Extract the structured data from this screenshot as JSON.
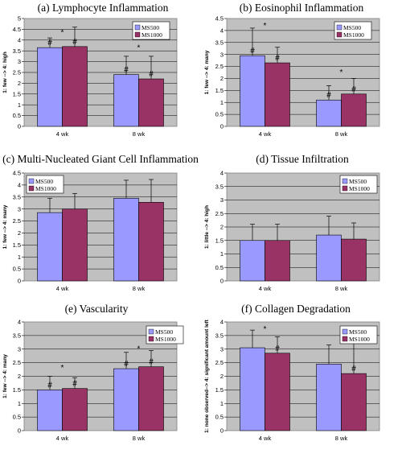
{
  "chart_data": [
    {
      "type": "bar",
      "title": "(a) Lymphocyte Inflammation",
      "ylabel": "1: few --> 4: high",
      "categories": [
        "4 wk",
        "8 wk"
      ],
      "ylim": [
        0,
        5
      ],
      "yticks": [
        "0",
        "0.5",
        "1",
        "1.5",
        "2",
        "2.5",
        "3",
        "3.5",
        "4",
        "4.5",
        "5"
      ],
      "series": [
        {
          "name": "MS500",
          "values": [
            3.65,
            2.4
          ],
          "errors": [
            0.45,
            0.85
          ],
          "color": "#9999ff"
        },
        {
          "name": "MS1000",
          "values": [
            3.7,
            2.2
          ],
          "errors": [
            0.9,
            1.05
          ],
          "color": "#993366"
        }
      ],
      "annotations": [
        {
          "text": "#",
          "category": 0,
          "series": 0
        },
        {
          "text": "#",
          "category": 0,
          "series": 1
        },
        {
          "text": "*",
          "category": 0,
          "series": 0.5,
          "y": 4.45
        },
        {
          "text": "#",
          "category": 1,
          "series": 0
        },
        {
          "text": "#",
          "category": 1,
          "series": 1
        },
        {
          "text": "*",
          "category": 1,
          "series": 0.5,
          "y": 3.75
        }
      ],
      "legend": "top-right",
      "grid": true
    },
    {
      "type": "bar",
      "title": "(b) Eosinophil Inflammation",
      "ylabel": "1: few --> 4: many",
      "categories": [
        "4 wk",
        "8 wk"
      ],
      "ylim": [
        0,
        4.5
      ],
      "yticks": [
        "0",
        "0.5",
        "1",
        "1.5",
        "2",
        "2.5",
        "3",
        "3.5",
        "4",
        "4.5"
      ],
      "series": [
        {
          "name": "MS500",
          "values": [
            2.95,
            1.1
          ],
          "errors": [
            1.15,
            0.6
          ],
          "color": "#9999ff"
        },
        {
          "name": "MS1000",
          "values": [
            2.65,
            1.35
          ],
          "errors": [
            0.65,
            0.65
          ],
          "color": "#993366"
        }
      ],
      "annotations": [
        {
          "text": "#",
          "category": 0,
          "series": 0
        },
        {
          "text": "#",
          "category": 0,
          "series": 1
        },
        {
          "text": "*",
          "category": 0,
          "series": 0.5,
          "y": 4.3
        },
        {
          "text": "#",
          "category": 1,
          "series": 0
        },
        {
          "text": "#",
          "category": 1,
          "series": 1
        },
        {
          "text": "*",
          "category": 1,
          "series": 0.5,
          "y": 2.35
        }
      ],
      "legend": "top-right",
      "grid": true
    },
    {
      "type": "bar",
      "title": "(c) Multi-Nucleated Giant Cell Inflammation",
      "ylabel": "1: few --> 4: many",
      "categories": [
        "4 wk",
        "8 wk"
      ],
      "ylim": [
        0,
        4.5
      ],
      "yticks": [
        "0",
        "0.5",
        "1",
        "1.5",
        "2",
        "2.5",
        "3",
        "3.5",
        "4",
        "4.5"
      ],
      "series": [
        {
          "name": "MS500",
          "values": [
            2.85,
            3.45
          ],
          "errors": [
            0.6,
            0.75
          ],
          "color": "#9999ff"
        },
        {
          "name": "MS1000",
          "values": [
            3.0,
            3.28
          ],
          "errors": [
            0.65,
            0.95
          ],
          "color": "#993366"
        }
      ],
      "annotations": [],
      "legend": "top-left",
      "grid": true
    },
    {
      "type": "bar",
      "title": "(d) Tissue Infiltration",
      "ylabel": "1: little --> 4: high",
      "categories": [
        "4 wk",
        "8 wk"
      ],
      "ylim": [
        0,
        4
      ],
      "yticks": [
        "0",
        "0.5",
        "1",
        "1.5",
        "2",
        "2.5",
        "3",
        "3.5",
        "4"
      ],
      "series": [
        {
          "name": "MS500",
          "values": [
            1.5,
            1.7
          ],
          "errors": [
            0.6,
            0.7
          ],
          "color": "#9999ff"
        },
        {
          "name": "MS1000",
          "values": [
            1.5,
            1.55
          ],
          "errors": [
            0.6,
            0.6
          ],
          "color": "#993366"
        }
      ],
      "annotations": [],
      "legend": "top-right",
      "grid": true
    },
    {
      "type": "bar",
      "title": "(e) Vascularity",
      "ylabel": "1: few --> 4: many",
      "categories": [
        "4 wk",
        "8 wk"
      ],
      "ylim": [
        0,
        4
      ],
      "yticks": [
        "0",
        "0.5",
        "1",
        "1.5",
        "2",
        "2.5",
        "3",
        "3.5",
        "4"
      ],
      "series": [
        {
          "name": "MS500",
          "values": [
            1.5,
            2.28
          ],
          "errors": [
            0.5,
            0.6
          ],
          "color": "#9999ff"
        },
        {
          "name": "MS1000",
          "values": [
            1.55,
            2.35
          ],
          "errors": [
            0.4,
            0.6
          ],
          "color": "#993366"
        }
      ],
      "annotations": [
        {
          "text": "#",
          "category": 0,
          "series": 0
        },
        {
          "text": "#",
          "category": 0,
          "series": 1
        },
        {
          "text": "*",
          "category": 0,
          "series": 0.5,
          "y": 2.4
        },
        {
          "text": "#",
          "category": 1,
          "series": 0
        },
        {
          "text": "#",
          "category": 1,
          "series": 1
        },
        {
          "text": "*",
          "category": 1,
          "series": 0.5,
          "y": 3.1
        }
      ],
      "legend": "top-right",
      "grid": true
    },
    {
      "type": "bar",
      "title": "(f) Collagen Degradation",
      "ylabel": "1: none observed--> 4: significant amount left",
      "categories": [
        "4 wk",
        "8 wk"
      ],
      "ylim": [
        0,
        4
      ],
      "yticks": [
        "0",
        "0.5",
        "1",
        "1.5",
        "2",
        "2.5",
        "3",
        "3.5",
        "4"
      ],
      "series": [
        {
          "name": "MS500",
          "values": [
            3.05,
            2.45
          ],
          "errors": [
            0.65,
            0.7
          ],
          "color": "#9999ff"
        },
        {
          "name": "MS1000",
          "values": [
            2.85,
            2.1
          ],
          "errors": [
            0.6,
            1.25
          ],
          "color": "#993366"
        }
      ],
      "annotations": [
        {
          "text": "*",
          "category": 0,
          "series": 0.5,
          "y": 3.82
        },
        {
          "text": "#",
          "category": 0,
          "series": 1
        },
        {
          "text": "*",
          "category": 1,
          "series": 0.5,
          "y": 3.38
        },
        {
          "text": "#",
          "category": 1,
          "series": 1
        }
      ],
      "legend": "top-right",
      "grid": true
    }
  ]
}
